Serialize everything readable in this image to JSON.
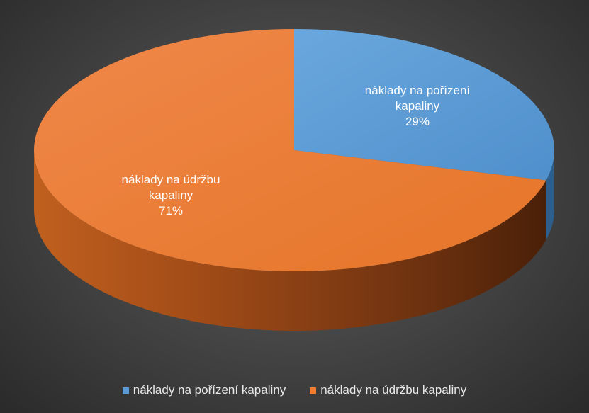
{
  "chart_data": {
    "type": "pie",
    "style": "3d",
    "categories": [
      "náklady na pořízení kapaliny",
      "náklady na údržbu kapaliny"
    ],
    "values": [
      29,
      71
    ],
    "value_labels": [
      "29%",
      "71%"
    ],
    "slice_labels": [
      [
        "náklady na pořízení",
        "kapaliny",
        "29%"
      ],
      [
        "náklady na údržbu",
        "kapaliny",
        "71%"
      ]
    ],
    "colors": [
      "#5b9bd5",
      "#ed7d31"
    ],
    "side_colors": [
      "#2e5f8c",
      "#8a3f10"
    ],
    "legend_position": "bottom"
  }
}
